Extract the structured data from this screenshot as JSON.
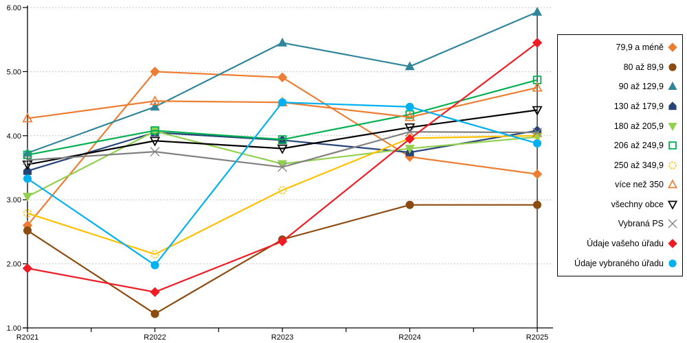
{
  "chart_data": {
    "type": "line",
    "title": "",
    "xlabel": "",
    "ylabel": "",
    "categories": [
      "R2021",
      "R2022",
      "R2023",
      "R2024",
      "R2025"
    ],
    "ylim": [
      1.0,
      6.0
    ],
    "ytick_step": 1.0,
    "ytick_labels": [
      "1.00",
      "2.00",
      "3.00",
      "4.00",
      "5.00",
      "6.00"
    ],
    "grid": "horizontal-dotted",
    "legend_position": "right-box",
    "series": [
      {
        "name": "79,9 a méně",
        "color": "#ED7D31",
        "marker": "diamond",
        "filled": true,
        "values": [
          2.6,
          5.0,
          4.91,
          3.67,
          3.4
        ]
      },
      {
        "name": "80 až 89,9",
        "color": "#8C4B10",
        "marker": "circle",
        "filled": true,
        "values": [
          2.52,
          1.22,
          2.38,
          2.92,
          2.92
        ]
      },
      {
        "name": "90 až 129,9",
        "color": "#31859B",
        "marker": "triangle-up",
        "filled": true,
        "values": [
          3.73,
          4.45,
          5.45,
          5.08,
          5.93
        ]
      },
      {
        "name": "130 až 179,9",
        "color": "#264478",
        "marker": "pentagon",
        "filled": true,
        "values": [
          3.45,
          4.05,
          3.93,
          3.74,
          4.08
        ]
      },
      {
        "name": "180 až 205,9",
        "color": "#92D050",
        "marker": "triangle-down",
        "filled": true,
        "values": [
          3.05,
          4.07,
          3.56,
          3.8,
          3.98
        ]
      },
      {
        "name": "206 až 249,9",
        "color": "#00B050",
        "marker": "square",
        "filled": false,
        "values": [
          3.7,
          4.08,
          3.94,
          4.33,
          4.87
        ]
      },
      {
        "name": "250 až 349,9",
        "color": "#FFC000",
        "marker": "circle-dashed",
        "filled": false,
        "values": [
          2.79,
          2.15,
          3.15,
          3.96,
          4.0
        ]
      },
      {
        "name": "více než 350",
        "color": "#ED7D31",
        "marker": "triangle-up",
        "filled": false,
        "values": [
          4.27,
          4.54,
          4.52,
          4.29,
          4.75
        ]
      },
      {
        "name": "všechny obce",
        "color": "#000000",
        "marker": "triangle-down",
        "filled": false,
        "values": [
          3.55,
          3.92,
          3.8,
          4.13,
          4.4
        ]
      },
      {
        "name": "Vybraná PS",
        "color": "#808080",
        "marker": "x",
        "filled": false,
        "values": [
          3.62,
          3.75,
          3.51,
          4.06,
          4.05
        ]
      },
      {
        "name": "Údaje vašeho úřadu",
        "color": "#EE1C25",
        "marker": "diamond",
        "filled": true,
        "values": [
          1.93,
          1.56,
          2.35,
          3.95,
          5.45
        ]
      },
      {
        "name": "Údaje vybraného úřadu",
        "color": "#00B0F0",
        "marker": "circle",
        "filled": true,
        "values": [
          3.33,
          1.98,
          4.52,
          4.45,
          3.88
        ]
      }
    ]
  }
}
